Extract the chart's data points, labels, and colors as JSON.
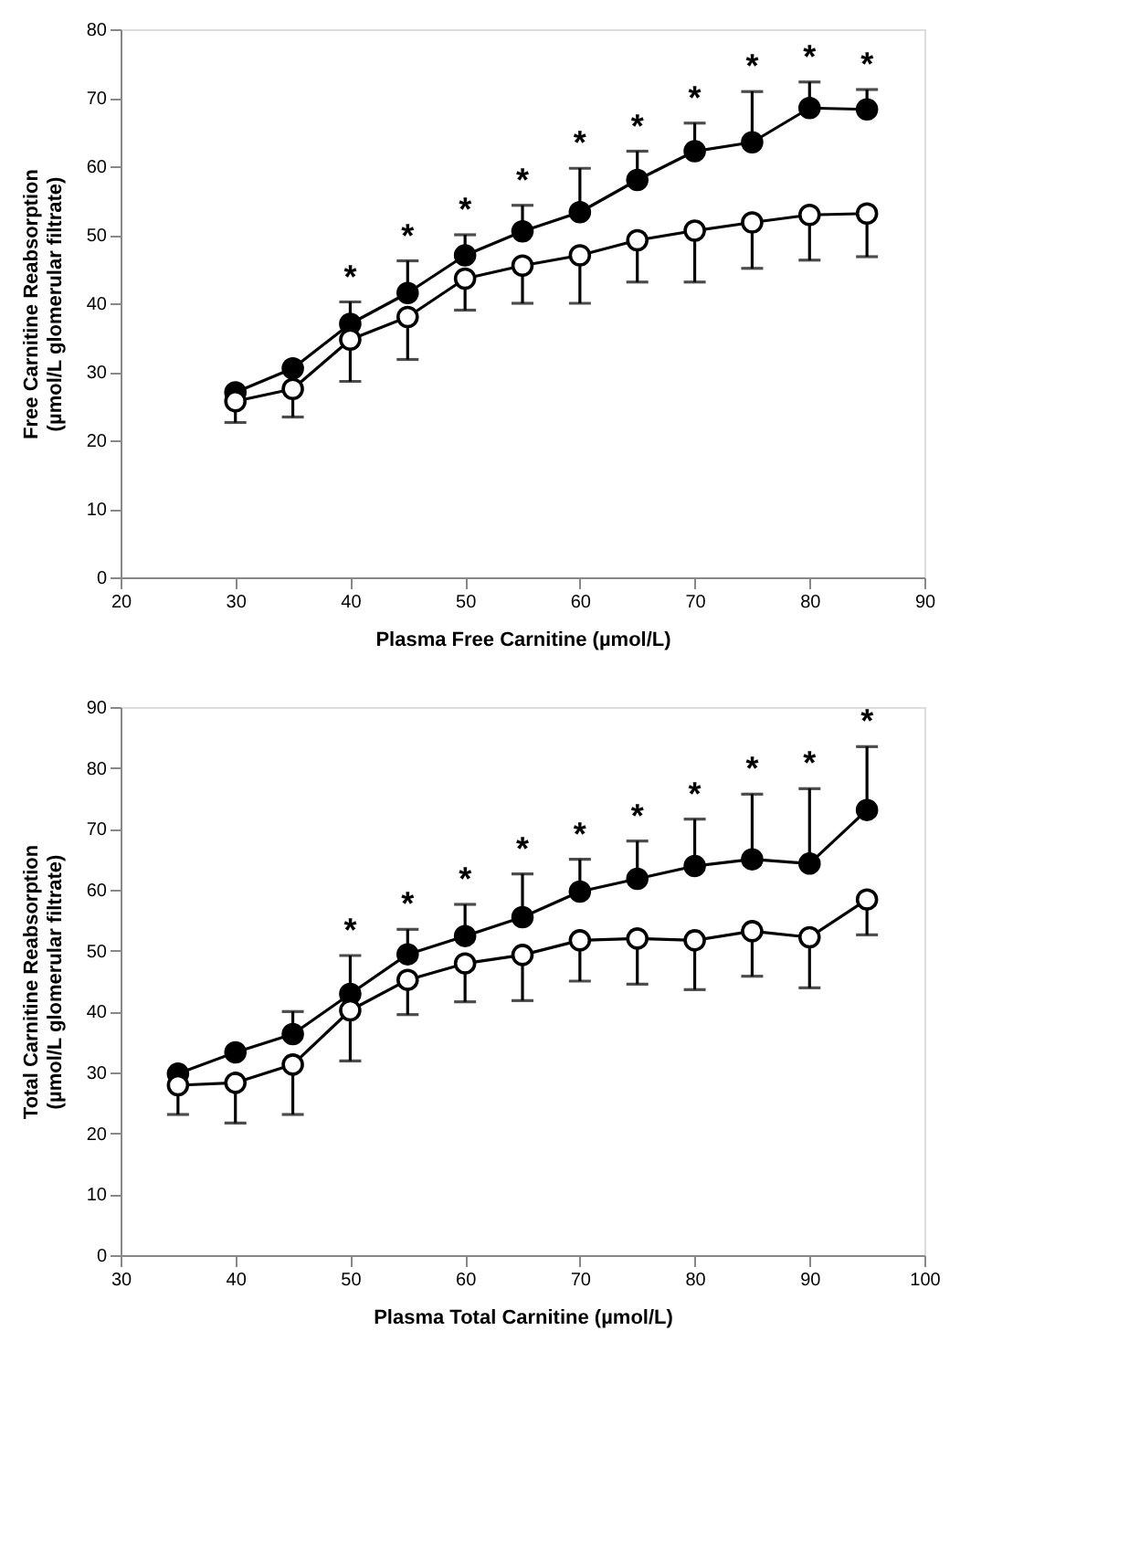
{
  "chart_data": [
    {
      "type": "line",
      "xlabel": "Plasma Free Carnitine (µmol/L)",
      "ylabel": "Free Carnitine Reabsorption\n(µmol/L glomerular filtrate)",
      "x": [
        30,
        35,
        40,
        45,
        50,
        55,
        60,
        65,
        70,
        75,
        80,
        85
      ],
      "series": [
        {
          "color": "#000000",
          "values": [
            27,
            30.5,
            37,
            41.5,
            47,
            50.5,
            53.3,
            58,
            62.2,
            63.5,
            68.5,
            68.3
          ],
          "errors": [
            null,
            null,
            [
              37,
              40.2
            ],
            [
              41.5,
              46.2
            ],
            [
              47,
              50
            ],
            [
              50.5,
              54.3
            ],
            [
              53.3,
              59.7
            ],
            [
              58,
              62.2
            ],
            [
              62.2,
              66.3
            ],
            [
              63.5,
              70.9
            ],
            [
              68.5,
              72.3
            ],
            [
              68.3,
              71.2
            ]
          ]
        },
        {
          "color": "#000000",
          "marker": "circle-open",
          "values": [
            25.7,
            27.5,
            34.7,
            38,
            43.6,
            45.5,
            47,
            49.2,
            50.6,
            51.8,
            52.9,
            53.1
          ],
          "errors": [
            [
              22.6,
              25.7
            ],
            [
              23.4,
              27.5
            ],
            [
              28.6,
              34.7
            ],
            [
              31.8,
              38
            ],
            [
              39,
              43.6
            ],
            [
              40,
              45.5
            ],
            [
              40,
              47
            ],
            [
              43.1,
              49.2
            ],
            [
              43.1,
              50.6
            ],
            [
              45.1,
              51.8
            ],
            [
              46.3,
              52.9
            ],
            [
              46.8,
              53.1
            ]
          ]
        }
      ],
      "annotations": [
        {
          "text": "*",
          "x": 40,
          "y": 40.2
        },
        {
          "text": "*",
          "x": 45,
          "y": 46.2
        },
        {
          "text": "*",
          "x": 50,
          "y": 50
        },
        {
          "text": "*",
          "x": 55,
          "y": 54.3
        },
        {
          "text": "*",
          "x": 60,
          "y": 59.7
        },
        {
          "text": "*",
          "x": 65,
          "y": 62.2
        },
        {
          "text": "*",
          "x": 70,
          "y": 66.3
        },
        {
          "text": "*",
          "x": 75,
          "y": 70.9
        },
        {
          "text": "*",
          "x": 80,
          "y": 72.3
        },
        {
          "text": "*",
          "x": 85,
          "y": 71.2
        }
      ],
      "xlim": [
        20,
        90
      ],
      "xticks": [
        20,
        30,
        40,
        50,
        60,
        70,
        80,
        90
      ],
      "ylim": [
        0,
        80
      ],
      "yticks": [
        0,
        10,
        20,
        30,
        40,
        50,
        60,
        70,
        80
      ],
      "marker": "circle",
      "line_style": "solid"
    },
    {
      "type": "line",
      "xlabel": "Plasma Total Carnitine (µmol/L)",
      "ylabel": "Total Carnitine Reabsorption\n(µmol/L glomerular filtrate)",
      "x": [
        35,
        40,
        45,
        50,
        55,
        60,
        65,
        70,
        75,
        80,
        85,
        90,
        95
      ],
      "series": [
        {
          "color": "#000000",
          "values": [
            29.8,
            33.3,
            36.3,
            42.9,
            49.4,
            52.4,
            55.5,
            59.7,
            61.8,
            63.9,
            65,
            64.3,
            73.1
          ],
          "errors": [
            null,
            null,
            [
              36.3,
              40
            ],
            [
              42.9,
              49.2
            ],
            [
              49.4,
              53.5
            ],
            [
              52.4,
              57.6
            ],
            [
              55.5,
              62.6
            ],
            [
              59.7,
              65
            ],
            [
              61.8,
              68
            ],
            [
              63.9,
              71.6
            ],
            [
              65,
              75.7
            ],
            [
              64.3,
              76.6
            ],
            [
              73.1,
              83.5
            ]
          ]
        },
        {
          "color": "#000000",
          "marker": "circle-open",
          "values": [
            27.9,
            28.3,
            31.3,
            40.2,
            45.2,
            47.9,
            49.3,
            51.7,
            52,
            51.7,
            53.2,
            52.2,
            58.4
          ],
          "errors": [
            [
              23.1,
              27.9
            ],
            [
              21.7,
              28.3
            ],
            [
              23.1,
              31.3
            ],
            [
              31.9,
              40.2
            ],
            [
              39.5,
              45.2
            ],
            [
              41.6,
              47.9
            ],
            [
              41.8,
              49.3
            ],
            [
              45,
              51.7
            ],
            [
              44.5,
              52
            ],
            [
              43.6,
              51.7
            ],
            [
              45.8,
              53.2
            ],
            [
              43.9,
              52.2
            ],
            [
              52.6,
              58.4
            ]
          ]
        }
      ],
      "annotations": [
        {
          "text": "*",
          "x": 50,
          "y": 49.2
        },
        {
          "text": "*",
          "x": 55,
          "y": 53.5
        },
        {
          "text": "*",
          "x": 60,
          "y": 57.6
        },
        {
          "text": "*",
          "x": 65,
          "y": 62.6
        },
        {
          "text": "*",
          "x": 70,
          "y": 65
        },
        {
          "text": "*",
          "x": 75,
          "y": 68
        },
        {
          "text": "*",
          "x": 80,
          "y": 71.6
        },
        {
          "text": "*",
          "x": 85,
          "y": 75.7
        },
        {
          "text": "*",
          "x": 90,
          "y": 76.6
        },
        {
          "text": "*",
          "x": 95,
          "y": 83.5
        }
      ],
      "xlim": [
        30,
        100
      ],
      "xticks": [
        30,
        40,
        50,
        60,
        70,
        80,
        90,
        100
      ],
      "ylim": [
        0,
        90
      ],
      "yticks": [
        0,
        10,
        20,
        30,
        40,
        50,
        60,
        70,
        80,
        90
      ],
      "marker": "circle",
      "line_style": "solid"
    }
  ]
}
